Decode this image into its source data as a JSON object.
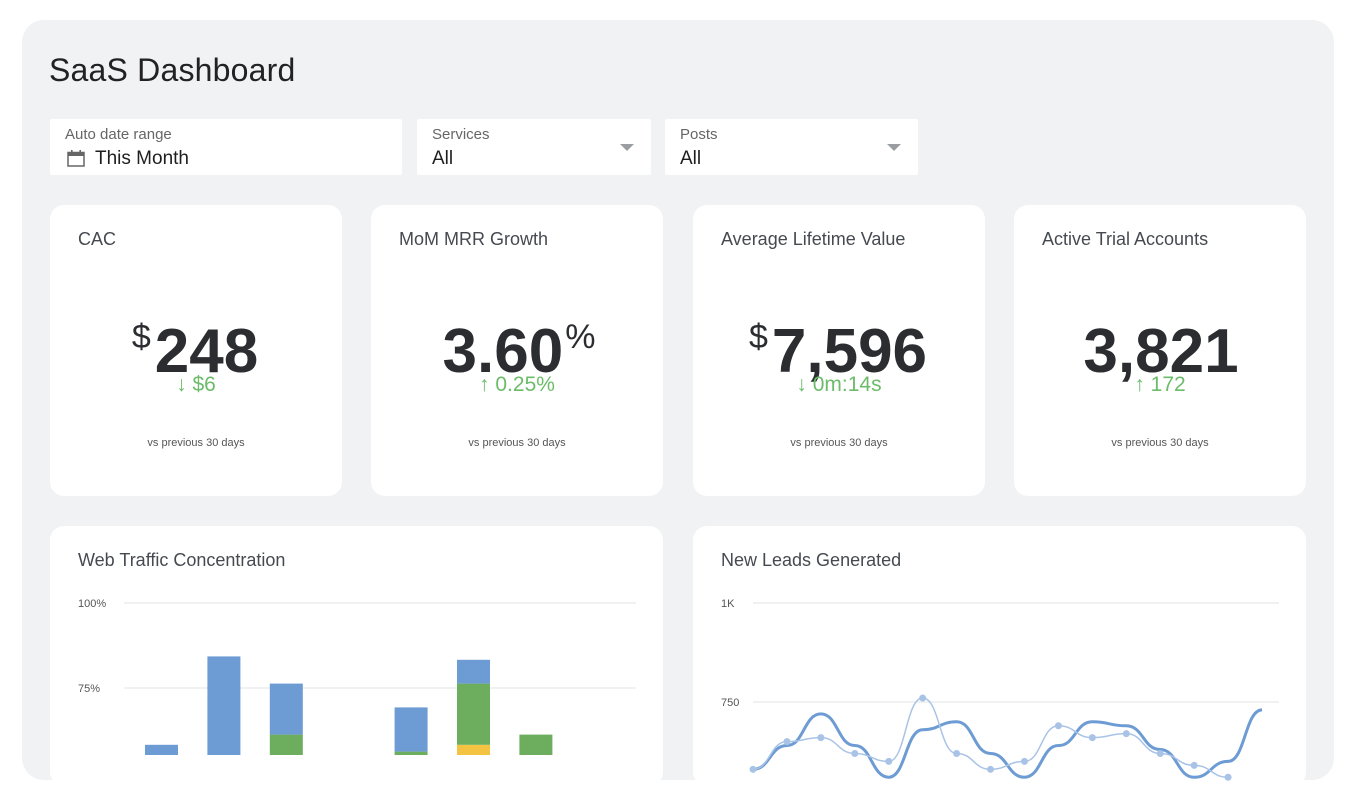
{
  "page": {
    "title": "SaaS Dashboard"
  },
  "filters": [
    {
      "label": "Auto date range",
      "value": "This Month",
      "icon": "calendar-icon"
    },
    {
      "label": "Services",
      "value": "All",
      "icon": "caret-down-icon"
    },
    {
      "label": "Posts",
      "value": "All",
      "icon": "caret-down-icon"
    }
  ],
  "kpis": [
    {
      "title": "CAC",
      "prefix": "$",
      "value": "248",
      "suffix": "",
      "delta": "↓ $6",
      "note": "vs previous 30 days"
    },
    {
      "title": "MoM MRR Growth",
      "prefix": "",
      "value": "3.60",
      "suffix": "%",
      "delta": "↑ 0.25%",
      "note": "vs previous 30 days"
    },
    {
      "title": "Average Lifetime Value",
      "prefix": "$",
      "value": "7,596",
      "suffix": "",
      "delta": "↓ 0m:14s",
      "note": "vs previous 30 days"
    },
    {
      "title": "Active Trial Accounts",
      "prefix": "",
      "value": "3,821",
      "suffix": "",
      "delta": "↑ 172",
      "note": "vs previous 30 days"
    }
  ],
  "colors": {
    "positive": "#6cbc6a",
    "blue": "#6d9bd3",
    "green": "#6cae5e",
    "yellow": "#f5c342",
    "lightblue": "#a9c3e6"
  },
  "chart_data": [
    {
      "type": "bar",
      "title": "Web Traffic Concentration",
      "y_tick_labels": [
        "100%",
        "75%"
      ],
      "ylim": [
        0,
        100
      ],
      "grid": true,
      "bars": [
        {
          "segments": [
            {
              "color": "blue",
              "value": 3
            }
          ]
        },
        {
          "segments": [
            {
              "color": "blue",
              "value": 29
            }
          ]
        },
        {
          "segments": [
            {
              "color": "green",
              "value": 6
            },
            {
              "color": "blue",
              "value": 15
            }
          ]
        },
        {
          "segments": []
        },
        {
          "segments": [
            {
              "color": "green",
              "value": 1
            },
            {
              "color": "blue",
              "value": 13
            }
          ]
        },
        {
          "segments": [
            {
              "color": "yellow",
              "value": 3
            },
            {
              "color": "green",
              "value": 18
            },
            {
              "color": "blue",
              "value": 7
            }
          ]
        },
        {
          "segments": [
            {
              "color": "green",
              "value": 6
            }
          ]
        }
      ]
    },
    {
      "type": "line",
      "title": "New Leads Generated",
      "y_tick_labels": [
        "1K",
        "750"
      ],
      "ylim": [
        500,
        1000
      ],
      "grid": true,
      "series": [
        {
          "color": "blue",
          "points": [
            [
              0,
              580
            ],
            [
              1,
              640
            ],
            [
              2,
              720
            ],
            [
              3,
              640
            ],
            [
              4,
              560
            ],
            [
              5,
              680
            ],
            [
              6,
              700
            ],
            [
              7,
              620
            ],
            [
              8,
              560
            ],
            [
              9,
              640
            ],
            [
              10,
              700
            ],
            [
              11,
              690
            ],
            [
              12,
              630
            ],
            [
              13,
              560
            ],
            [
              14,
              600
            ],
            [
              15,
              730
            ]
          ]
        },
        {
          "color": "lightblue",
          "points": [
            [
              0,
              580
            ],
            [
              1,
              650
            ],
            [
              2,
              660
            ],
            [
              3,
              620
            ],
            [
              4,
              600
            ],
            [
              5,
              760
            ],
            [
              6,
              620
            ],
            [
              7,
              580
            ],
            [
              8,
              600
            ],
            [
              9,
              690
            ],
            [
              10,
              660
            ],
            [
              11,
              670
            ],
            [
              12,
              620
            ],
            [
              13,
              590
            ],
            [
              14,
              560
            ]
          ]
        }
      ]
    }
  ]
}
